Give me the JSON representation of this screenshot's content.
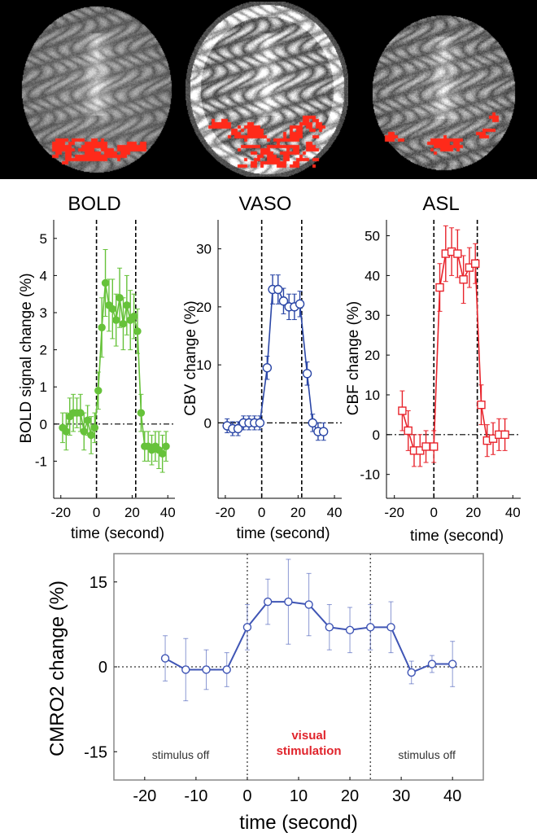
{
  "brain_images": [
    {
      "name": "BOLD activation slice",
      "overlay_color": "#ff2a1a"
    },
    {
      "name": "VASO activation slice",
      "overlay_color": "#ff2a1a"
    },
    {
      "name": "ASL activation slice",
      "overlay_color": "#ff2a1a"
    }
  ],
  "colors": {
    "bold": "#66c23a",
    "vaso": "#2a46a6",
    "asl": "#e8242c",
    "cmro2": "#3f55b5",
    "axes": "#000000",
    "visual_label": "#e0242c"
  },
  "chart_data": [
    {
      "type": "line",
      "title": "BOLD",
      "xlabel": "time (second)",
      "ylabel": "BOLD signal change (%)",
      "xlim": [
        -24,
        44
      ],
      "ylim": [
        -2.0,
        5.5
      ],
      "xticks": [
        "-20",
        "0",
        "20",
        "40"
      ],
      "yticks": [
        "-1",
        "0",
        "1",
        "2",
        "3",
        "4",
        "5"
      ],
      "stimulus_lines": [
        0,
        22
      ],
      "baseline": 0,
      "marker": "filled-circle",
      "series": [
        {
          "x": [
            -19,
            -17,
            -15,
            -13,
            -11,
            -9,
            -7,
            -5,
            -3,
            -1,
            1,
            3,
            5,
            7,
            9,
            11,
            13,
            15,
            17,
            19,
            21,
            23,
            25,
            27,
            29,
            31,
            33,
            35,
            37,
            39
          ],
          "y": [
            -0.1,
            -0.2,
            0.2,
            0.3,
            0.3,
            0.3,
            -0.2,
            0.1,
            -0.3,
            -0.1,
            0.9,
            2.6,
            3.8,
            3.2,
            3.1,
            2.8,
            3.4,
            2.7,
            3.2,
            2.8,
            2.9,
            2.5,
            0.3,
            -0.6,
            -0.6,
            -0.7,
            -0.6,
            -0.7,
            -0.8,
            -0.6
          ],
          "err": [
            0.4,
            0.5,
            0.5,
            0.5,
            0.4,
            0.5,
            0.5,
            0.4,
            0.5,
            0.4,
            0.5,
            0.8,
            0.9,
            0.7,
            0.8,
            0.7,
            0.8,
            0.7,
            0.8,
            0.8,
            0.6,
            0.6,
            0.5,
            0.4,
            0.4,
            0.4,
            0.4,
            0.5,
            0.5,
            0.4
          ]
        }
      ]
    },
    {
      "type": "line",
      "title": "VASO",
      "xlabel": "time (second)",
      "ylabel": "CBV change (%)",
      "xlim": [
        -24,
        44
      ],
      "ylim": [
        -13,
        35
      ],
      "xticks": [
        "-20",
        "0",
        "20",
        "40"
      ],
      "yticks": [
        "0",
        "10",
        "20",
        "30"
      ],
      "stimulus_lines": [
        0,
        22
      ],
      "baseline": 0,
      "marker": "open-circle",
      "series": [
        {
          "x": [
            -19,
            -16,
            -13,
            -10,
            -7,
            -4,
            -1,
            3,
            6,
            9,
            12,
            15,
            18,
            21,
            25,
            28,
            31,
            34
          ],
          "y": [
            -0.5,
            -1,
            -1,
            0,
            0,
            0,
            0,
            9.5,
            23,
            23,
            21,
            20,
            20,
            20.5,
            8.5,
            0,
            -1.5,
            -1.5
          ],
          "err": [
            1.2,
            1.2,
            1.2,
            1.2,
            1.2,
            1.2,
            1.2,
            2,
            2.5,
            2.5,
            2.2,
            2.2,
            2.2,
            2.2,
            2,
            1.5,
            1.5,
            1.5
          ]
        }
      ]
    },
    {
      "type": "line",
      "title": "ASL",
      "xlabel": "time (second)",
      "ylabel": "CBF change (%)",
      "xlim": [
        -24,
        44
      ],
      "ylim": [
        -16,
        54
      ],
      "xticks": [
        "-20",
        "0",
        "20",
        "40"
      ],
      "yticks": [
        "-10",
        "0",
        "10",
        "20",
        "30",
        "40",
        "50"
      ],
      "stimulus_lines": [
        0,
        22
      ],
      "baseline": 0,
      "marker": "open-square",
      "series": [
        {
          "x": [
            -16,
            -13,
            -10,
            -7,
            -4,
            0,
            3,
            6,
            9,
            12,
            15,
            18,
            21,
            24,
            27,
            30,
            33,
            36
          ],
          "y": [
            6,
            1,
            -4,
            -4,
            -3,
            -3,
            37,
            45.5,
            46,
            45.5,
            39,
            42,
            43,
            7.5,
            -1.5,
            -1,
            0,
            0
          ],
          "err": [
            5,
            5,
            4,
            4,
            4,
            4,
            6,
            7,
            6,
            6,
            6,
            5,
            5,
            5,
            4,
            4,
            4,
            4
          ]
        }
      ]
    },
    {
      "type": "line",
      "xlabel": "time (second)",
      "ylabel": "CMRO2 change (%)",
      "xlim": [
        -26,
        46
      ],
      "ylim": [
        -20,
        20
      ],
      "xticks": [
        "-20",
        "-10",
        "0",
        "10",
        "20",
        "30",
        "40"
      ],
      "yticks": [
        "-15",
        "0",
        "15"
      ],
      "stimulus_lines": [
        0,
        24
      ],
      "baseline": 0,
      "marker": "open-circle",
      "annotations": [
        "stimulus off",
        "visual stimulation",
        "stimulus off"
      ],
      "series": [
        {
          "x": [
            -16,
            -12,
            -8,
            -4,
            0,
            4,
            8,
            12,
            16,
            20,
            24,
            28,
            32,
            36,
            40
          ],
          "y": [
            1.5,
            -0.5,
            -0.5,
            -0.5,
            7,
            11.5,
            11.5,
            11,
            7,
            6.5,
            7,
            7,
            -1,
            0.5,
            0.5
          ],
          "err": [
            4,
            5.5,
            3.5,
            3,
            4,
            4,
            7.5,
            5.5,
            4,
            4,
            4,
            4.5,
            2,
            1.5,
            4
          ]
        }
      ]
    }
  ]
}
